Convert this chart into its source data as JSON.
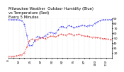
{
  "title": "Milwaukee Weather  Outdoor Humidity (Blue)\nvs Temperature (Red)\nEvery 5 Minutes",
  "bg_color": "#ffffff",
  "grid_color": "#c8c8c8",
  "blue_color": "#0000ee",
  "red_color": "#dd0000",
  "ylim_humidity": [
    0,
    100
  ],
  "ylim_temp": [
    10,
    90
  ],
  "humidity": [
    97,
    97,
    97,
    97,
    97,
    97,
    97,
    97,
    97,
    97,
    97,
    97,
    96,
    96,
    95,
    95,
    93,
    90,
    85,
    78,
    68,
    57,
    46,
    37,
    32,
    30,
    30,
    31,
    34,
    38,
    43,
    48,
    52,
    54,
    55,
    54,
    52,
    50,
    50,
    51,
    53,
    55,
    56,
    57,
    58,
    60,
    62,
    64,
    65,
    65,
    64,
    63,
    62,
    62,
    63,
    65,
    68,
    71,
    74,
    77,
    79,
    80,
    80,
    79,
    77,
    76,
    76,
    78,
    80,
    82,
    82,
    81,
    80,
    79,
    78,
    77,
    77,
    78,
    79,
    80,
    80,
    80,
    80,
    81,
    82,
    83,
    83,
    82,
    81,
    80,
    80,
    81,
    82,
    83,
    83,
    82,
    82,
    83,
    85,
    87,
    89,
    90,
    91,
    92,
    93,
    94,
    95,
    96,
    97,
    97,
    97,
    97,
    97,
    97,
    97,
    97,
    97,
    97,
    97,
    97
  ],
  "temperature": [
    13,
    13,
    13,
    13,
    13,
    13,
    13,
    13,
    14,
    14,
    14,
    14,
    15,
    15,
    16,
    16,
    17,
    18,
    20,
    23,
    27,
    32,
    37,
    41,
    44,
    46,
    47,
    48,
    48,
    47,
    46,
    46,
    46,
    47,
    48,
    49,
    50,
    51,
    51,
    51,
    50,
    49,
    49,
    49,
    50,
    51,
    52,
    53,
    54,
    54,
    54,
    54,
    53,
    53,
    53,
    53,
    54,
    55,
    56,
    57,
    58,
    58,
    58,
    57,
    56,
    56,
    56,
    57,
    58,
    59,
    59,
    59,
    58,
    57,
    56,
    56,
    56,
    57,
    57,
    58,
    58,
    58,
    57,
    56,
    56,
    55,
    55,
    54,
    54,
    54,
    54,
    54,
    53,
    53,
    52,
    52,
    52,
    52,
    52,
    52,
    52,
    51,
    51,
    51,
    51,
    50,
    50,
    50,
    49,
    49,
    49,
    49,
    49,
    48,
    48,
    48,
    48,
    47,
    47,
    47
  ],
  "n_points": 120,
  "title_fontsize": 3.8,
  "tick_fontsize": 3.2,
  "right_yticks": [
    20,
    30,
    40,
    50,
    60,
    70,
    80,
    90
  ],
  "right_yticklabels": [
    "20",
    "30",
    "40",
    "50",
    "60",
    "70",
    "80",
    "90"
  ]
}
